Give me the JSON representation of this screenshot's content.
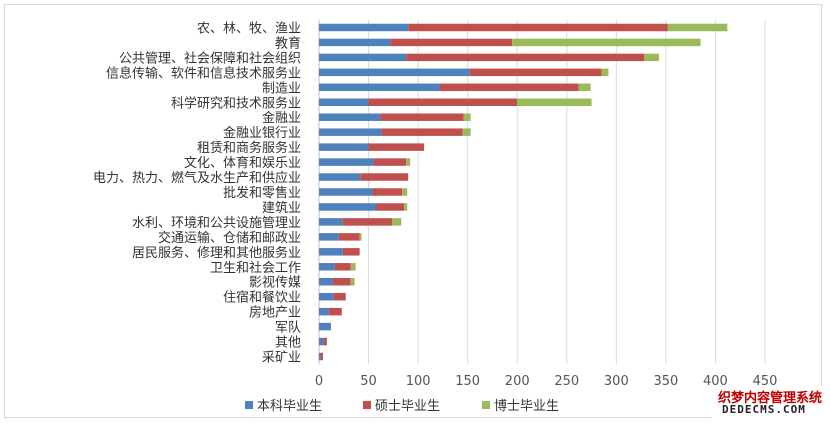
{
  "chart_data": {
    "type": "bar",
    "orientation": "horizontal",
    "stacked": true,
    "categories": [
      "农、林、牧、渔业",
      "教育",
      "公共管理、社会保障和社会组织",
      "信息传输、软件和信息技术服务业",
      "制造业",
      "科学研究和技术服务业",
      "金融业",
      "金融业银行业",
      "租赁和商务服务业",
      "文化、体育和娱乐业",
      "电力、热力、燃气及水生产和供应业",
      "批发和零售业",
      "建筑业",
      "水利、环境和公共设施管理业",
      "交通运输、仓储和邮政业",
      "居民服务、修理和其他服务业",
      "卫生和社会工作",
      "影视传媒",
      "住宿和餐饮业",
      "房地产业",
      "军队",
      "其他",
      "采矿业"
    ],
    "series": [
      {
        "name": "本科毕业生",
        "color": "#4f81bd",
        "values": [
          90,
          72,
          88,
          152,
          122,
          50,
          62,
          63,
          50,
          55,
          42,
          54,
          58,
          24,
          20,
          24,
          16,
          14,
          15,
          10,
          12,
          5,
          2
        ]
      },
      {
        "name": "硕士毕业生",
        "color": "#c0504d",
        "values": [
          262,
          123,
          240,
          133,
          140,
          150,
          84,
          82,
          56,
          33,
          48,
          30,
          28,
          50,
          21,
          17,
          16,
          18,
          12,
          13,
          0,
          3,
          2
        ]
      },
      {
        "name": "博士毕业生",
        "color": "#9bbb59",
        "values": [
          60,
          190,
          15,
          7,
          12,
          75,
          7,
          8,
          0,
          4,
          0,
          5,
          3,
          9,
          2,
          0,
          5,
          4,
          0,
          0,
          0,
          0,
          0
        ]
      }
    ],
    "xlim": [
      0,
      450
    ],
    "xticks": [
      "0",
      "50",
      "100",
      "150",
      "200",
      "250",
      "300",
      "350",
      "400",
      "450"
    ],
    "grid": true,
    "legend": "bottom"
  },
  "watermark": {
    "line1": "织梦内容管理系统",
    "line2": "DEDECMS.COM"
  }
}
